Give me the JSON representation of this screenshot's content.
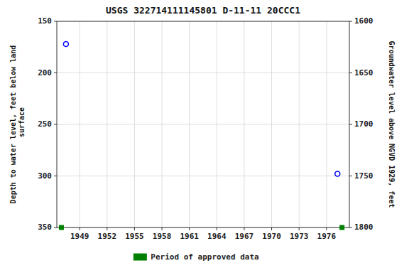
{
  "chart_data": {
    "type": "scatter",
    "title": "USGS 322714111145801 D-11-11 20CCC1",
    "y_label": "Depth to water level, feet below land\n surface",
    "y2_label": "Groundwater level above NGVD 1929, feet",
    "xlim": [
      1946.5,
      1978.5
    ],
    "xticks": [
      1949,
      1952,
      1955,
      1958,
      1961,
      1964,
      1967,
      1970,
      1973,
      1976
    ],
    "ylim": [
      350,
      150
    ],
    "yticks": [
      150,
      200,
      250,
      300,
      350
    ],
    "y2lim": [
      1800,
      1600
    ],
    "y2ticks": [
      1800,
      1750,
      1700,
      1650,
      1600
    ],
    "grid": true,
    "legend": "bottom",
    "series": [
      {
        "color": "#0000ff",
        "marker": "circle",
        "x": [
          1947.5,
          1977.2
        ],
        "values": [
          172,
          298
        ]
      },
      {
        "name": "Period of approved data",
        "color": "#008000",
        "marker": "square",
        "x": [
          1947.0,
          1977.7
        ],
        "values": [
          350,
          350
        ]
      }
    ]
  }
}
